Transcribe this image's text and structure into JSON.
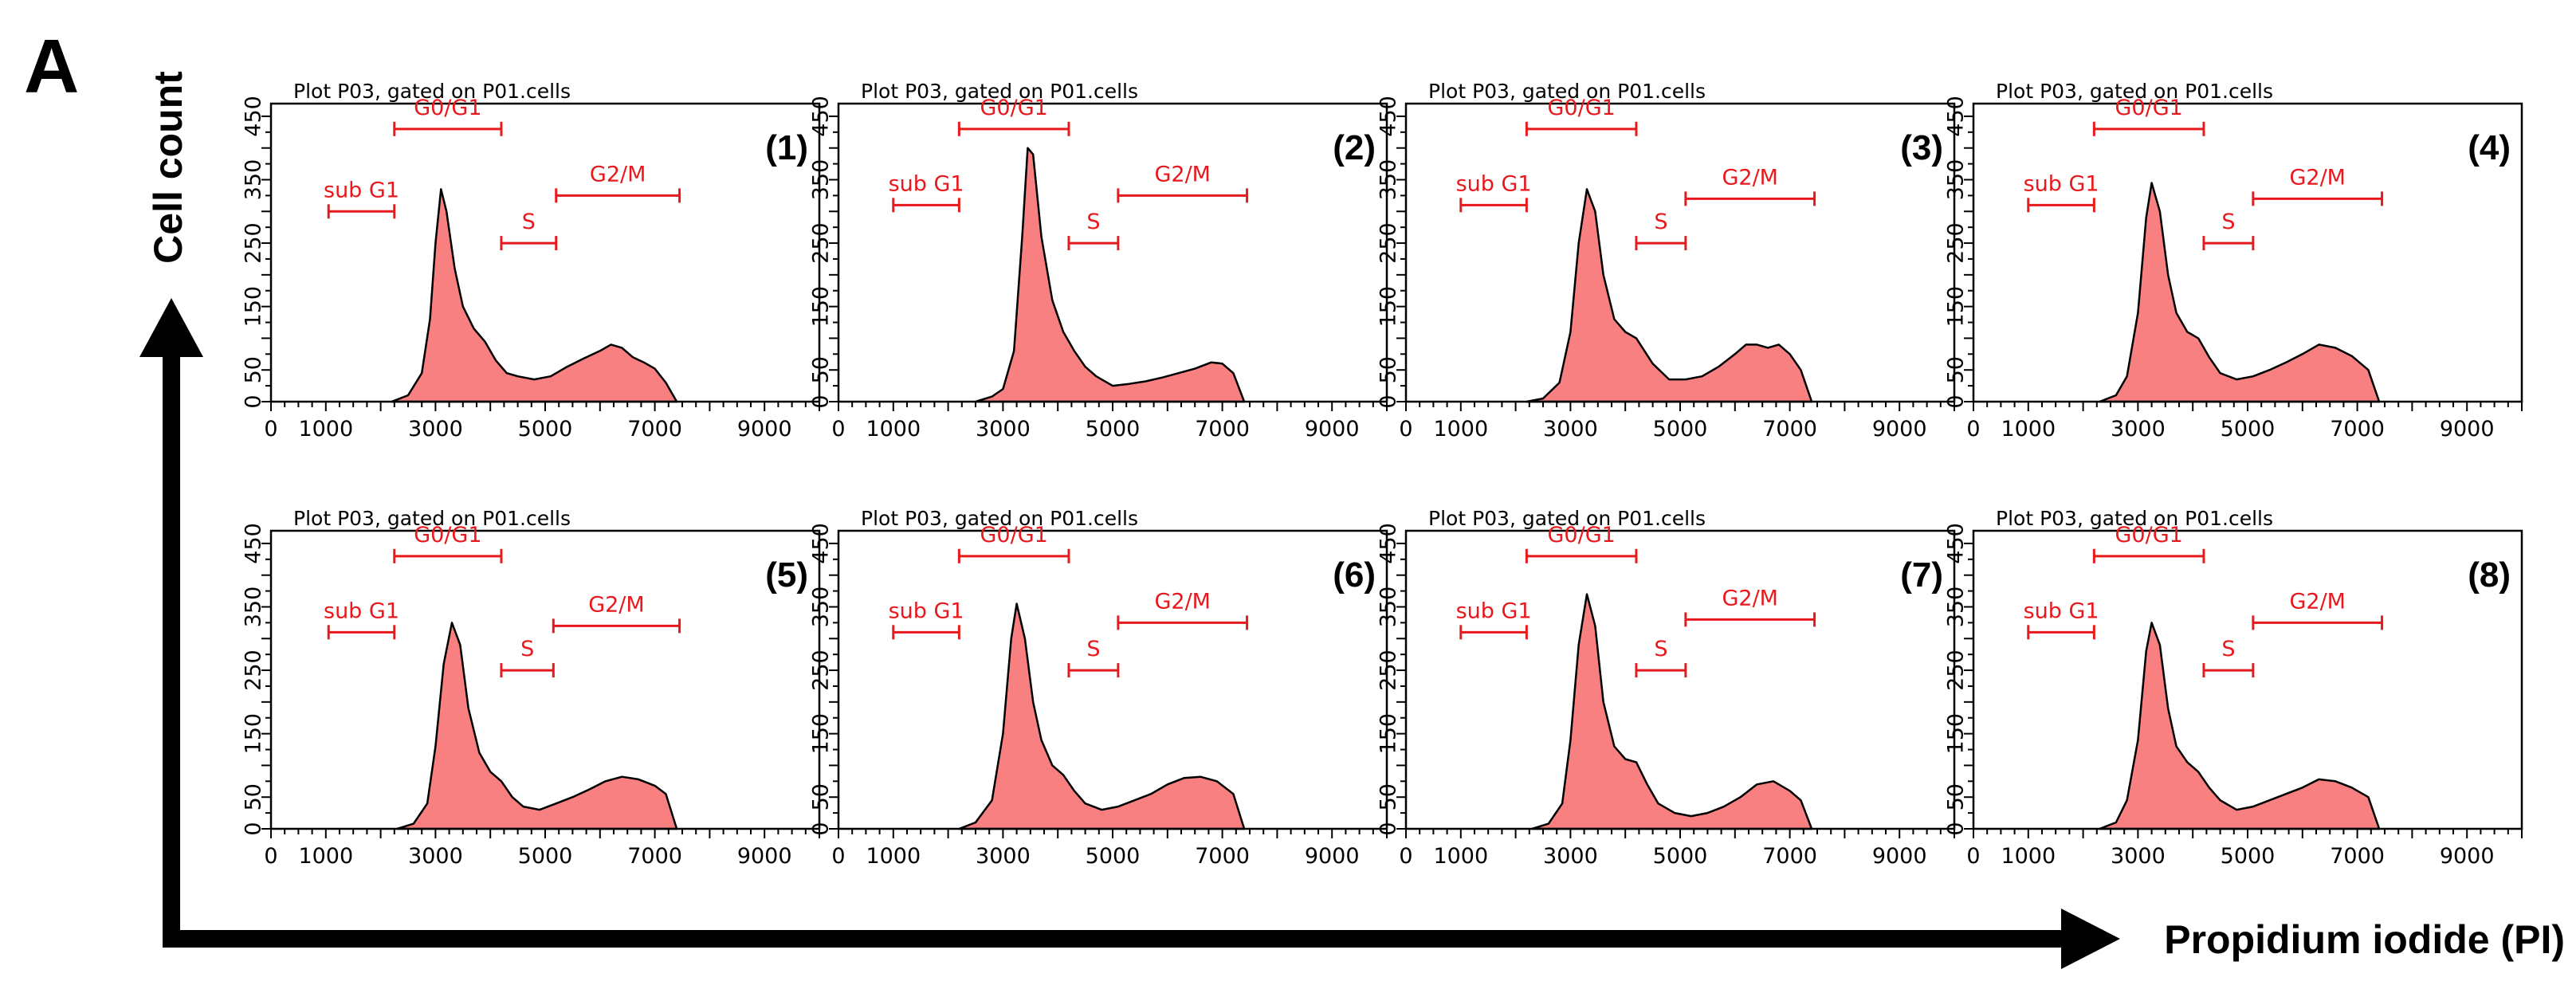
{
  "figure": {
    "panel_letter": "A",
    "y_axis_title": "Cell count",
    "x_axis_title": "Propidium iodide (PI)",
    "colors": {
      "fill": "#f98080",
      "gate": "#e8191c",
      "axis": "#000000"
    }
  },
  "chart_data": [
    {
      "type": "area",
      "label": "(1)",
      "title": "Plot P03, gated on P01.cells",
      "xlim": [
        0,
        10000
      ],
      "ylim": [
        0,
        470
      ],
      "x_ticks": [
        0,
        1000,
        3000,
        5000,
        7000,
        9000
      ],
      "y_ticks": [
        0,
        50,
        150,
        250,
        350,
        450
      ],
      "gates": [
        {
          "name": "sub G1",
          "x0": 1050,
          "x1": 2250,
          "y": 300
        },
        {
          "name": "G0/G1",
          "x0": 2250,
          "x1": 4200,
          "y": 430
        },
        {
          "name": "S",
          "x0": 4200,
          "x1": 5200,
          "y": 250
        },
        {
          "name": "G2/M",
          "x0": 5200,
          "x1": 7450,
          "y": 325
        }
      ],
      "x": [
        2200,
        2500,
        2750,
        2900,
        3000,
        3100,
        3200,
        3350,
        3500,
        3700,
        3900,
        4100,
        4300,
        4500,
        4800,
        5100,
        5400,
        5700,
        6000,
        6200,
        6400,
        6600,
        6800,
        7000,
        7200,
        7400
      ],
      "y": [
        0,
        10,
        45,
        130,
        250,
        335,
        300,
        210,
        150,
        115,
        95,
        65,
        45,
        40,
        35,
        40,
        55,
        68,
        80,
        90,
        85,
        70,
        62,
        52,
        30,
        0
      ]
    },
    {
      "type": "area",
      "label": "(2)",
      "title": "Plot P03, gated on P01.cells",
      "xlim": [
        0,
        10000
      ],
      "ylim": [
        0,
        470
      ],
      "x_ticks": [
        0,
        1000,
        3000,
        5000,
        7000,
        9000
      ],
      "y_ticks": [
        0,
        50,
        150,
        250,
        350,
        450
      ],
      "gates": [
        {
          "name": "sub G1",
          "x0": 1000,
          "x1": 2200,
          "y": 310
        },
        {
          "name": "G0/G1",
          "x0": 2200,
          "x1": 4200,
          "y": 430
        },
        {
          "name": "S",
          "x0": 4200,
          "x1": 5100,
          "y": 250
        },
        {
          "name": "G2/M",
          "x0": 5100,
          "x1": 7450,
          "y": 325
        }
      ],
      "x": [
        2500,
        2800,
        3000,
        3200,
        3350,
        3450,
        3550,
        3700,
        3900,
        4100,
        4300,
        4500,
        4700,
        5000,
        5300,
        5600,
        5900,
        6200,
        6500,
        6800,
        7000,
        7200,
        7400
      ],
      "y": [
        0,
        8,
        20,
        80,
        260,
        400,
        390,
        260,
        160,
        110,
        80,
        55,
        40,
        25,
        28,
        32,
        38,
        45,
        52,
        62,
        60,
        45,
        0
      ]
    },
    {
      "type": "area",
      "label": "(3)",
      "title": "Plot P03, gated on P01.cells",
      "xlim": [
        0,
        10000
      ],
      "ylim": [
        0,
        470
      ],
      "x_ticks": [
        0,
        1000,
        3000,
        5000,
        7000,
        9000
      ],
      "y_ticks": [
        0,
        50,
        150,
        250,
        350,
        450
      ],
      "gates": [
        {
          "name": "sub G1",
          "x0": 1000,
          "x1": 2200,
          "y": 310
        },
        {
          "name": "G0/G1",
          "x0": 2200,
          "x1": 4200,
          "y": 430
        },
        {
          "name": "S",
          "x0": 4200,
          "x1": 5100,
          "y": 250
        },
        {
          "name": "G2/M",
          "x0": 5100,
          "x1": 7450,
          "y": 320
        }
      ],
      "x": [
        2200,
        2500,
        2800,
        3000,
        3150,
        3300,
        3450,
        3600,
        3800,
        4000,
        4200,
        4500,
        4800,
        5100,
        5400,
        5700,
        6000,
        6200,
        6400,
        6600,
        6800,
        7000,
        7200,
        7400
      ],
      "y": [
        0,
        5,
        30,
        110,
        250,
        335,
        300,
        200,
        130,
        110,
        100,
        60,
        35,
        35,
        40,
        55,
        75,
        90,
        90,
        85,
        90,
        75,
        50,
        0
      ]
    },
    {
      "type": "area",
      "label": "(4)",
      "title": "Plot P03, gated on P01.cells",
      "xlim": [
        0,
        10000
      ],
      "ylim": [
        0,
        470
      ],
      "x_ticks": [
        0,
        1000,
        3000,
        5000,
        7000,
        9000
      ],
      "y_ticks": [
        0,
        50,
        150,
        250,
        350,
        450
      ],
      "gates": [
        {
          "name": "sub G1",
          "x0": 1000,
          "x1": 2200,
          "y": 310
        },
        {
          "name": "G0/G1",
          "x0": 2200,
          "x1": 4200,
          "y": 430
        },
        {
          "name": "S",
          "x0": 4200,
          "x1": 5100,
          "y": 250
        },
        {
          "name": "G2/M",
          "x0": 5100,
          "x1": 7450,
          "y": 320
        }
      ],
      "x": [
        2300,
        2600,
        2800,
        3000,
        3150,
        3250,
        3400,
        3550,
        3700,
        3900,
        4100,
        4300,
        4500,
        4800,
        5100,
        5400,
        5700,
        6000,
        6300,
        6600,
        6900,
        7200,
        7400
      ],
      "y": [
        0,
        10,
        40,
        140,
        290,
        345,
        300,
        200,
        140,
        110,
        100,
        70,
        45,
        35,
        40,
        50,
        62,
        75,
        90,
        85,
        72,
        50,
        0
      ]
    },
    {
      "type": "area",
      "label": "(5)",
      "title": "Plot P03, gated on P01.cells",
      "xlim": [
        0,
        10000
      ],
      "ylim": [
        0,
        470
      ],
      "x_ticks": [
        0,
        1000,
        3000,
        5000,
        7000,
        9000
      ],
      "y_ticks": [
        0,
        50,
        150,
        250,
        350,
        450
      ],
      "gates": [
        {
          "name": "sub G1",
          "x0": 1050,
          "x1": 2250,
          "y": 310
        },
        {
          "name": "G0/G1",
          "x0": 2250,
          "x1": 4200,
          "y": 430
        },
        {
          "name": "S",
          "x0": 4200,
          "x1": 5150,
          "y": 250
        },
        {
          "name": "G2/M",
          "x0": 5150,
          "x1": 7450,
          "y": 320
        }
      ],
      "x": [
        2300,
        2600,
        2850,
        3000,
        3150,
        3300,
        3450,
        3600,
        3800,
        4000,
        4200,
        4400,
        4600,
        4900,
        5200,
        5500,
        5800,
        6100,
        6400,
        6700,
        7000,
        7200,
        7400
      ],
      "y": [
        0,
        8,
        40,
        130,
        260,
        325,
        290,
        190,
        120,
        90,
        75,
        50,
        35,
        30,
        40,
        50,
        62,
        75,
        82,
        78,
        68,
        55,
        0
      ]
    },
    {
      "type": "area",
      "label": "(6)",
      "title": "Plot P03, gated on P01.cells",
      "xlim": [
        0,
        10000
      ],
      "ylim": [
        0,
        470
      ],
      "x_ticks": [
        0,
        1000,
        3000,
        5000,
        7000,
        9000
      ],
      "y_ticks": [
        0,
        50,
        150,
        250,
        350,
        450
      ],
      "gates": [
        {
          "name": "sub G1",
          "x0": 1000,
          "x1": 2200,
          "y": 310
        },
        {
          "name": "G0/G1",
          "x0": 2200,
          "x1": 4200,
          "y": 430
        },
        {
          "name": "S",
          "x0": 4200,
          "x1": 5100,
          "y": 250
        },
        {
          "name": "G2/M",
          "x0": 5100,
          "x1": 7450,
          "y": 325
        }
      ],
      "x": [
        2200,
        2500,
        2800,
        3000,
        3150,
        3250,
        3400,
        3550,
        3700,
        3900,
        4100,
        4300,
        4500,
        4800,
        5100,
        5400,
        5700,
        6000,
        6300,
        6600,
        6900,
        7200,
        7400
      ],
      "y": [
        0,
        10,
        45,
        150,
        300,
        355,
        300,
        200,
        140,
        100,
        85,
        60,
        40,
        30,
        35,
        45,
        55,
        70,
        80,
        82,
        75,
        55,
        0
      ]
    },
    {
      "type": "area",
      "label": "(7)",
      "title": "Plot P03, gated on P01.cells",
      "xlim": [
        0,
        10000
      ],
      "ylim": [
        0,
        470
      ],
      "x_ticks": [
        0,
        1000,
        3000,
        5000,
        7000,
        9000
      ],
      "y_ticks": [
        0,
        50,
        150,
        250,
        350,
        450
      ],
      "gates": [
        {
          "name": "sub G1",
          "x0": 1000,
          "x1": 2200,
          "y": 310
        },
        {
          "name": "G0/G1",
          "x0": 2200,
          "x1": 4200,
          "y": 430
        },
        {
          "name": "S",
          "x0": 4200,
          "x1": 5100,
          "y": 250
        },
        {
          "name": "G2/M",
          "x0": 5100,
          "x1": 7450,
          "y": 330
        }
      ],
      "x": [
        2300,
        2600,
        2850,
        3000,
        3150,
        3300,
        3450,
        3600,
        3800,
        4000,
        4200,
        4400,
        4600,
        4900,
        5200,
        5500,
        5800,
        6100,
        6400,
        6700,
        7000,
        7200,
        7400
      ],
      "y": [
        0,
        8,
        40,
        140,
        290,
        370,
        320,
        200,
        130,
        110,
        105,
        70,
        40,
        25,
        20,
        25,
        35,
        50,
        70,
        75,
        60,
        45,
        0
      ]
    },
    {
      "type": "area",
      "label": "(8)",
      "title": "Plot P03, gated on P01.cells",
      "xlim": [
        0,
        10000
      ],
      "ylim": [
        0,
        470
      ],
      "x_ticks": [
        0,
        1000,
        3000,
        5000,
        7000,
        9000
      ],
      "y_ticks": [
        0,
        50,
        150,
        250,
        350,
        450
      ],
      "gates": [
        {
          "name": "sub G1",
          "x0": 1000,
          "x1": 2200,
          "y": 310
        },
        {
          "name": "G0/G1",
          "x0": 2200,
          "x1": 4200,
          "y": 430
        },
        {
          "name": "S",
          "x0": 4200,
          "x1": 5100,
          "y": 250
        },
        {
          "name": "G2/M",
          "x0": 5100,
          "x1": 7450,
          "y": 325
        }
      ],
      "x": [
        2300,
        2600,
        2800,
        3000,
        3150,
        3250,
        3400,
        3550,
        3700,
        3900,
        4100,
        4300,
        4500,
        4800,
        5100,
        5400,
        5700,
        6000,
        6300,
        6600,
        6900,
        7200,
        7400
      ],
      "y": [
        0,
        10,
        45,
        140,
        280,
        325,
        290,
        190,
        130,
        105,
        90,
        65,
        45,
        30,
        35,
        45,
        55,
        65,
        78,
        75,
        65,
        50,
        0
      ]
    }
  ]
}
